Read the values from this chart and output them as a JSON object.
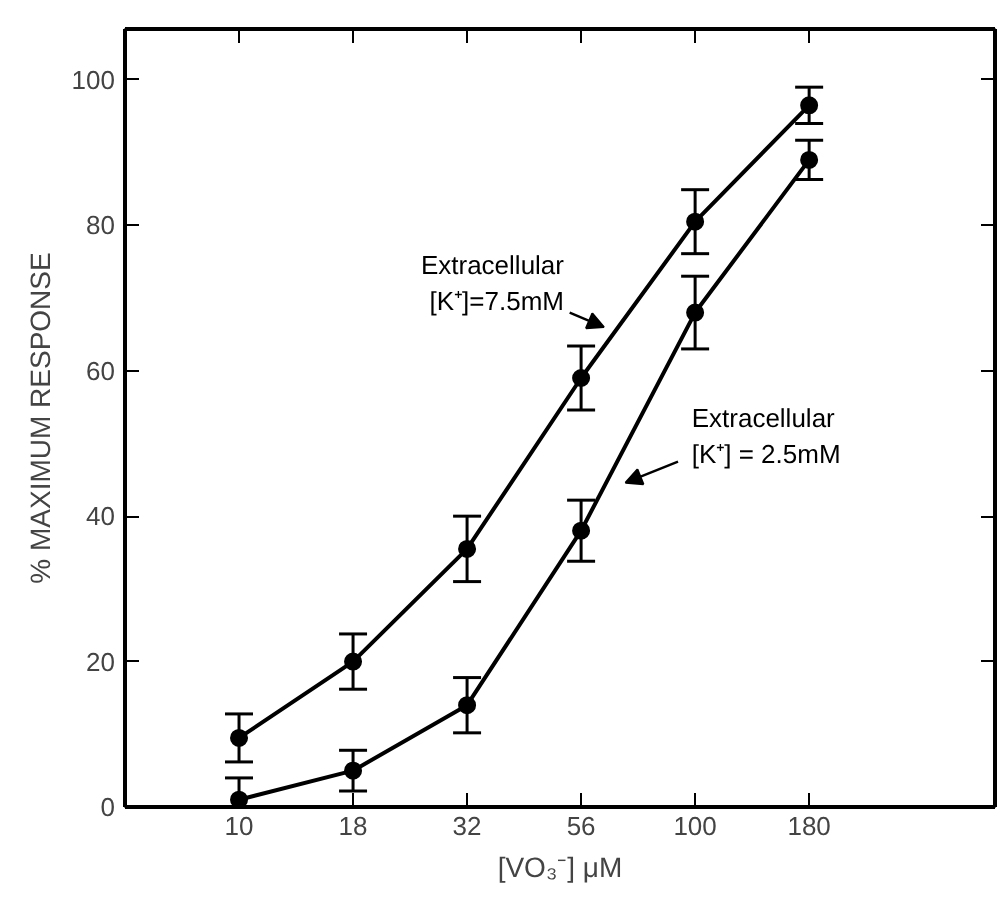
{
  "chart_data": {
    "type": "line",
    "xlabel": "[VO₃⁻] μM",
    "ylabel": "% MAXIMUM RESPONSE",
    "categories": [
      "10",
      "18",
      "32",
      "56",
      "100",
      "180"
    ],
    "ylim": [
      0,
      107
    ],
    "yticks": [
      0,
      20,
      40,
      60,
      80,
      100
    ],
    "grid": false,
    "marker": "circle",
    "line_style": "solid",
    "series": [
      {
        "name": "Extracellular\n[K⁺]=7.5mM",
        "color": "#000000",
        "values": [
          9.5,
          20,
          35.5,
          59,
          80.5,
          96.5
        ],
        "errors": [
          3.3,
          3.8,
          4.5,
          4.4,
          4.4,
          2.5
        ]
      },
      {
        "name": "Extracellular\n[K⁺] = 2.5mM",
        "color": "#000000",
        "values": [
          1,
          5,
          14,
          38,
          68,
          89
        ],
        "errors": [
          3,
          2.8,
          3.8,
          4.2,
          5,
          2.7
        ]
      }
    ]
  }
}
